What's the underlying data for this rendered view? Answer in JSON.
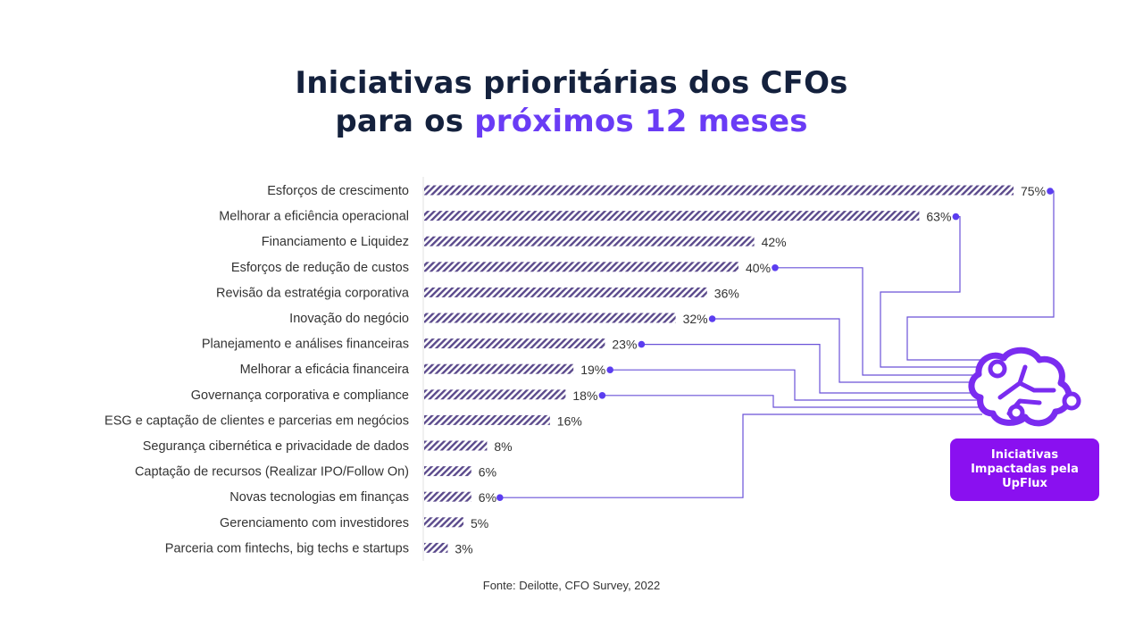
{
  "title": {
    "line1": "Iniciativas prioritárias dos CFOs",
    "line2_prefix": "para os ",
    "line2_highlight": "próximos 12 meses"
  },
  "source": "Fonte: Deilotte, CFO Survey, 2022",
  "badge": {
    "text": "Iniciativas Impactadas pela UpFlux"
  },
  "colors": {
    "bar": "#5b4a8c",
    "accent": "#6a3cf5",
    "badge": "#8a10f0",
    "title": "#14213d"
  },
  "chart_data": {
    "type": "bar",
    "orientation": "horizontal",
    "categories": [
      "Esforços de crescimento",
      "Melhorar a eficiência operacional",
      "Financiamento e Liquidez",
      "Esforços de redução de custos",
      "Revisão da estratégia corporativa",
      "Inovação do negócio",
      "Planejamento e análises financeiras",
      "Melhorar a eficácia financeira",
      "Governança corporativa e compliance",
      "ESG e captação de clientes e parcerias em negócios",
      "Segurança cibernética e privacidade de dados",
      "Captação de recursos (Realizar IPO/Follow On)",
      "Novas tecnologias em finanças",
      "Gerenciamento com investidores",
      "Parceria com fintechs, big techs e startups"
    ],
    "values": [
      75,
      63,
      42,
      40,
      36,
      32,
      23,
      19,
      18,
      16,
      8,
      6,
      6,
      5,
      3
    ],
    "value_labels": [
      "75%",
      "63%",
      "42%",
      "40%",
      "36%",
      "32%",
      "23%",
      "19%",
      "18%",
      "16%",
      "8%",
      "6%",
      "6%",
      "5%",
      "3%"
    ],
    "highlighted": [
      "Esforços de crescimento",
      "Melhorar a eficiência operacional",
      "Esforços de redução de custos",
      "Inovação do negócio",
      "Planejamento e análises financeiras",
      "Melhorar a eficácia financeira",
      "Governança corporativa e compliance",
      "Novas tecnologias em finanças"
    ],
    "xlim": [
      0,
      75
    ],
    "grid": false,
    "legend": "none"
  }
}
